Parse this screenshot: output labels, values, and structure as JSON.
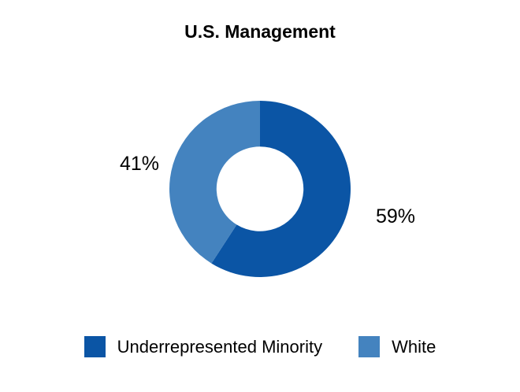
{
  "chart_data": {
    "type": "pie",
    "subtype": "donut",
    "title": "U.S. Management",
    "segments": [
      {
        "label": "Underrepresented Minority",
        "value": 59,
        "display": "59%",
        "color": "#0B55A5"
      },
      {
        "label": "White",
        "value": 41,
        "display": "41%",
        "color": "#4483BF"
      }
    ],
    "start_angle_deg": 0,
    "direction": "clockwise",
    "inner_radius_ratio": 0.48,
    "legend_position": "bottom",
    "data_labels": "outside, percentage",
    "background_color": "#FFFFFF",
    "text_color": "#000000"
  }
}
